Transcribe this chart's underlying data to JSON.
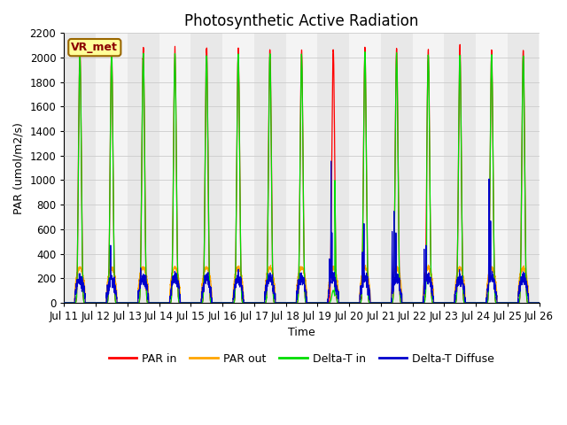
{
  "title": "Photosynthetic Active Radiation",
  "ylabel": "PAR (umol/m2/s)",
  "xlabel": "Time",
  "ylim": [
    0,
    2200
  ],
  "label_text": "VR_met",
  "legend_labels": [
    "PAR in",
    "PAR out",
    "Delta-T in",
    "Delta-T Diffuse"
  ],
  "colors": {
    "par_in": "#ff0000",
    "par_out": "#ffa500",
    "delta_t_in": "#00dd00",
    "delta_t_diffuse": "#0000cc"
  },
  "x_tick_labels": [
    "Jul 11",
    "Jul 12",
    "Jul 13",
    "Jul 14",
    "Jul 15",
    "Jul 16",
    "Jul 17",
    "Jul 18",
    "Jul 19",
    "Jul 20",
    "Jul 21",
    "Jul 22",
    "Jul 23",
    "Jul 24",
    "Jul 25",
    "Jul 26"
  ],
  "background_color": "#ffffff",
  "band_color_light": "#e8e8e8",
  "band_color_white": "#f4f4f4",
  "grid_color": "#cccccc",
  "title_fontsize": 12,
  "axis_fontsize": 9,
  "tick_fontsize": 8.5
}
